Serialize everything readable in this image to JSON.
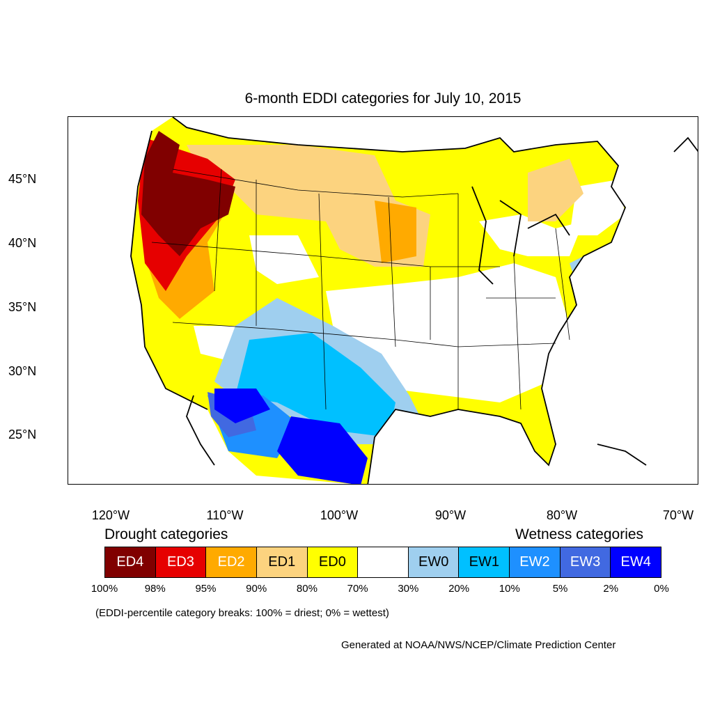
{
  "title": "6-month EDDI categories for July 10, 2015",
  "lat_labels": [
    "45°N",
    "40°N",
    "35°N",
    "30°N",
    "25°N"
  ],
  "lon_labels": [
    "120°W",
    "110°W",
    "100°W",
    "90°W",
    "80°W",
    "70°W"
  ],
  "legend": {
    "drought_heading": "Drought categories",
    "wetness_heading": "Wetness categories",
    "categories": [
      {
        "label": "ED4",
        "color": "#800000",
        "text_color": "#ffffff"
      },
      {
        "label": "ED3",
        "color": "#e60000",
        "text_color": "#ffffff"
      },
      {
        "label": "ED2",
        "color": "#ffaa00",
        "text_color": "#ffffff"
      },
      {
        "label": "ED1",
        "color": "#fcd37f",
        "text_color": "#000000"
      },
      {
        "label": "ED0",
        "color": "#ffff00",
        "text_color": "#000000"
      },
      {
        "label": "",
        "color": "#ffffff",
        "text_color": "#000000"
      },
      {
        "label": "EW0",
        "color": "#9fcfef",
        "text_color": "#000000"
      },
      {
        "label": "EW1",
        "color": "#00c0ff",
        "text_color": "#000000"
      },
      {
        "label": "EW2",
        "color": "#1e90ff",
        "text_color": "#ffffff"
      },
      {
        "label": "EW3",
        "color": "#4169e1",
        "text_color": "#ffffff"
      },
      {
        "label": "EW4",
        "color": "#0000ff",
        "text_color": "#ffffff"
      }
    ],
    "breaks": [
      "100%",
      "98%",
      "95%",
      "90%",
      "80%",
      "70%",
      "30%",
      "20%",
      "10%",
      "5%",
      "2%",
      "0%"
    ]
  },
  "note": "(EDDI-percentile category breaks: 100% = driest; 0% = wettest)",
  "credit": "Generated at NOAA/NWS/NCEP/Climate Prediction Center"
}
